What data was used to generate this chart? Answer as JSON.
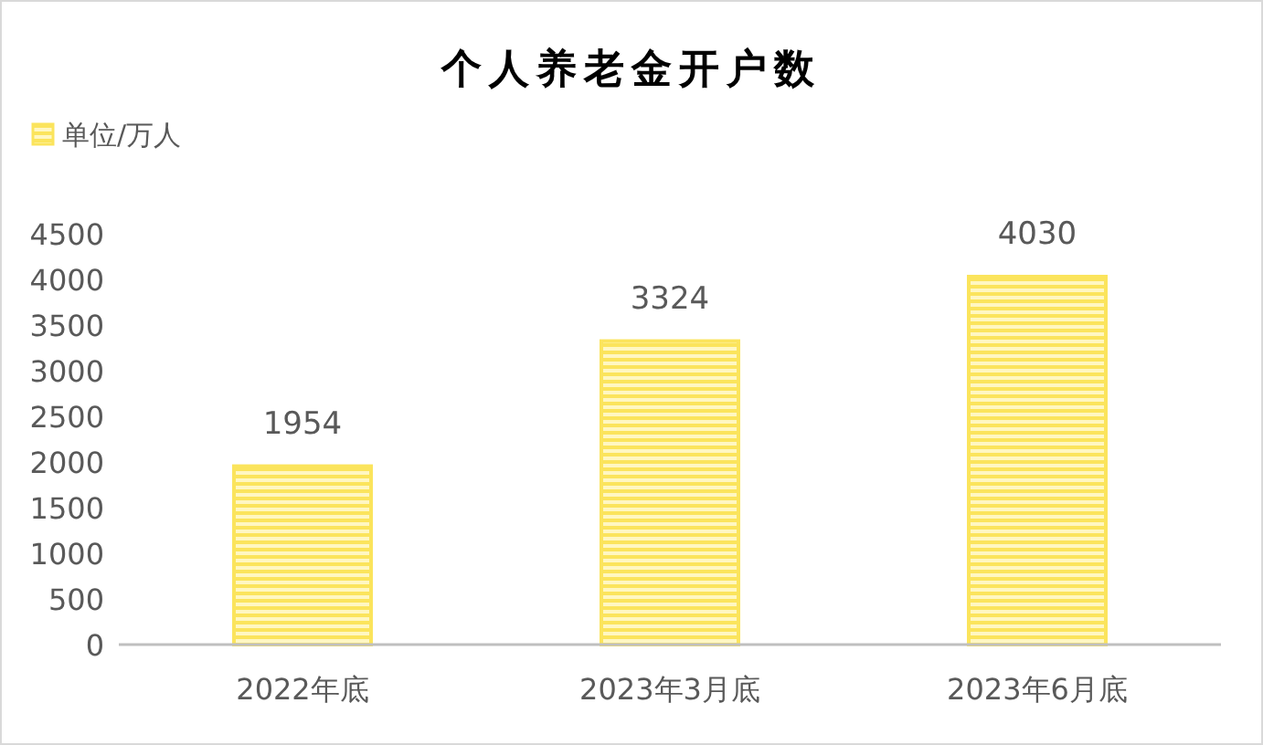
{
  "chart_data": {
    "type": "bar",
    "title": "个人养老金开户数",
    "categories": [
      "2022年底",
      "2023年3月底",
      "2023年6月底"
    ],
    "series": [
      {
        "name": "单位/万人",
        "color": "#fbe45c",
        "values": [
          1954,
          3324,
          4030
        ]
      }
    ],
    "ylim": [
      0,
      4500
    ],
    "yticks": [
      0,
      500,
      1000,
      1500,
      2000,
      2500,
      3000,
      3500,
      4000,
      4500
    ],
    "data_labels": true,
    "legend": "top left"
  }
}
